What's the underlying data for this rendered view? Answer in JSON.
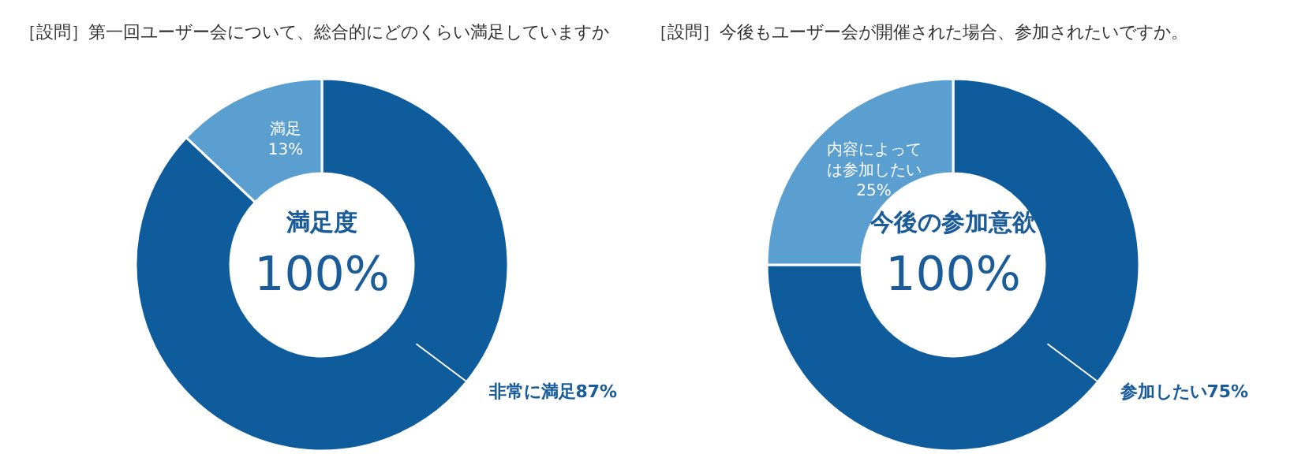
{
  "chart_data": [
    {
      "type": "donut",
      "title": "［設問］第一回ユーザー会について、総合的にどのくらい満足していますか",
      "categories": [
        "非常に満足",
        "満足"
      ],
      "values": [
        87,
        13
      ],
      "value_labels": [
        "87%",
        "13%"
      ],
      "colors": [
        "#0f5c9c",
        "#5b9fd0"
      ],
      "annotations": [
        "満足度",
        "100%"
      ],
      "legend": false
    },
    {
      "type": "donut",
      "title": "［設問］今後もユーザー会が開催された場合、参加されたいですか。",
      "categories": [
        "参加したい",
        "内容によっては参加したい"
      ],
      "values": [
        75,
        25
      ],
      "value_labels": [
        "75%",
        "25%"
      ],
      "colors": [
        "#0f5c9c",
        "#5b9fd0"
      ],
      "annotations": [
        "今後の参加意欲",
        "100%"
      ],
      "legend": false
    }
  ]
}
